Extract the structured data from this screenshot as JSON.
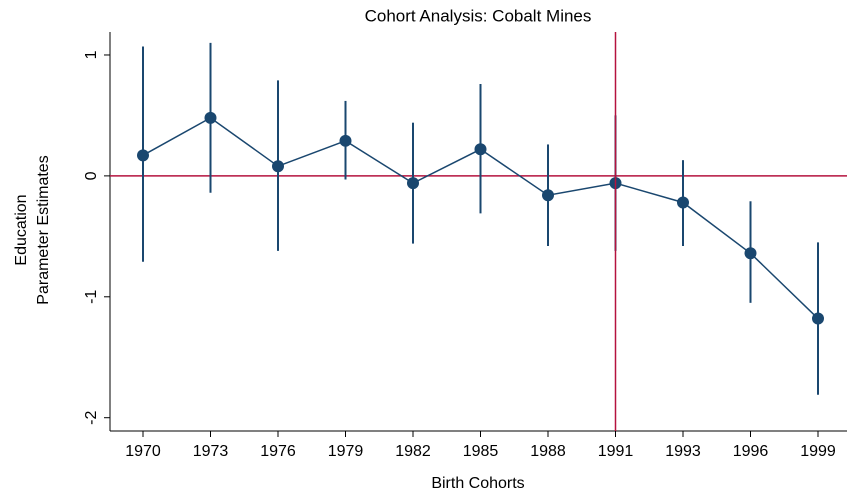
{
  "chart_data": {
    "type": "errorbar",
    "title": "Cohort Analysis: Cobalt Mines",
    "x_label": "Birth Cohorts",
    "y_label": [
      "Education",
      "Parameter Estimates"
    ],
    "categories": [
      "1970",
      "1973",
      "1976",
      "1979",
      "1982",
      "1985",
      "1988",
      "1991",
      "1993",
      "1996",
      "1999"
    ],
    "series": [
      {
        "color": "#1a476f",
        "values": [
          0.17,
          0.48,
          0.08,
          0.29,
          -0.06,
          0.22,
          -0.16,
          -0.06,
          -0.22,
          -0.64,
          -1.18
        ],
        "lower": [
          -0.71,
          -0.14,
          -0.62,
          -0.03,
          -0.56,
          -0.31,
          -0.58,
          -0.62,
          -0.58,
          -1.05,
          -1.81
        ],
        "upper": [
          1.07,
          1.1,
          0.79,
          0.62,
          0.44,
          0.76,
          0.26,
          0.5,
          0.13,
          -0.21,
          -0.55
        ]
      }
    ],
    "ylim": [
      -2.11,
      1.19
    ],
    "yticks": [
      -2,
      -1,
      0,
      1
    ],
    "reference_lines": {
      "y": 0,
      "x": "1991",
      "color": "#b5123e"
    }
  }
}
